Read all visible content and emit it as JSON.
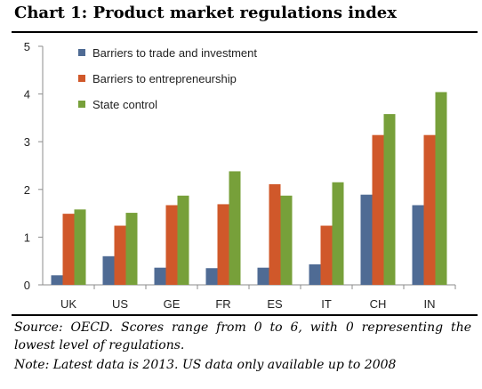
{
  "chart_data": {
    "type": "bar",
    "title": "Chart 1: Product market regulations index",
    "categories": [
      "UK",
      "US",
      "GE",
      "FR",
      "ES",
      "IT",
      "CH",
      "IN"
    ],
    "series": [
      {
        "name": "Barriers to trade and investment",
        "color": "#4f6b94",
        "values": [
          0.2,
          0.6,
          0.36,
          0.35,
          0.36,
          0.43,
          1.89,
          1.67
        ]
      },
      {
        "name": "Barriers to entrepreneurship",
        "color": "#d0582a",
        "values": [
          1.49,
          1.24,
          1.67,
          1.69,
          2.11,
          1.24,
          3.14,
          3.14
        ]
      },
      {
        "name": "State control",
        "color": "#77a03a",
        "values": [
          1.58,
          1.51,
          1.87,
          2.38,
          1.87,
          2.15,
          3.58,
          4.04
        ]
      }
    ],
    "yticks": [
      "0",
      "1",
      "2",
      "3",
      "4",
      "5"
    ],
    "ylim": [
      0,
      5
    ],
    "grid": false,
    "legend_position": "top-left"
  },
  "footer": {
    "source": "Source: OECD. Scores range from 0 to 6, with 0 representing the lowest level of regulations.",
    "note": "Note: Latest data is 2013. US data only available up to 2008"
  }
}
